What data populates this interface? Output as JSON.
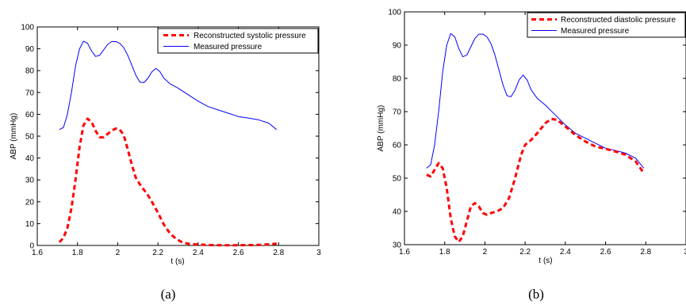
{
  "chart_data": [
    {
      "type": "line",
      "caption": "(a)",
      "xlabel": "t (s)",
      "ylabel": "ABP (mmHg)",
      "xlim": [
        1.6,
        3
      ],
      "ylim": [
        0,
        100
      ],
      "xticks": [
        "1.6",
        "1.8",
        "2",
        "2.2",
        "2.4",
        "2.6",
        "2.8",
        "3"
      ],
      "yticks": [
        "0",
        "10",
        "20",
        "30",
        "40",
        "50",
        "60",
        "70",
        "80",
        "90",
        "100"
      ],
      "legend_position": "top-right",
      "series": [
        {
          "name": "Reconstructed systolic pressure",
          "color": "#ff0000",
          "style": "dashed",
          "x": [
            1.71,
            1.73,
            1.75,
            1.77,
            1.79,
            1.81,
            1.83,
            1.85,
            1.87,
            1.89,
            1.91,
            1.93,
            1.95,
            1.97,
            1.99,
            2.01,
            2.03,
            2.05,
            2.07,
            2.09,
            2.11,
            2.13,
            2.15,
            2.17,
            2.2,
            2.23,
            2.26,
            2.29,
            2.32,
            2.35,
            2.4,
            2.45,
            2.5,
            2.6,
            2.7,
            2.79
          ],
          "y": [
            1.5,
            3.5,
            8,
            17,
            30,
            45,
            55,
            58,
            56.5,
            52.5,
            49.5,
            49.5,
            51,
            52.5,
            53.5,
            53,
            50.5,
            44,
            37,
            31,
            28,
            25.5,
            23,
            20,
            15,
            9.5,
            5.5,
            3,
            1.5,
            0.8,
            0.4,
            0.2,
            0.1,
            0.1,
            0.2,
            0.8
          ]
        },
        {
          "name": "Measured pressure",
          "color": "#0000ff",
          "style": "solid",
          "x": [
            1.71,
            1.73,
            1.75,
            1.77,
            1.79,
            1.81,
            1.83,
            1.85,
            1.87,
            1.89,
            1.91,
            1.93,
            1.95,
            1.97,
            1.99,
            2.01,
            2.03,
            2.05,
            2.07,
            2.09,
            2.11,
            2.13,
            2.15,
            2.17,
            2.19,
            2.21,
            2.23,
            2.26,
            2.3,
            2.35,
            2.4,
            2.45,
            2.5,
            2.55,
            2.6,
            2.65,
            2.7,
            2.75,
            2.79
          ],
          "y": [
            53,
            54,
            60,
            70,
            82,
            90,
            93.5,
            92.5,
            89,
            86.5,
            87,
            89.5,
            92,
            93.3,
            93.3,
            92.5,
            90.5,
            87,
            82.5,
            78,
            74.8,
            74.5,
            76.5,
            79.5,
            81,
            79.5,
            76.5,
            74,
            72,
            69,
            66,
            63.5,
            62,
            60.5,
            59,
            58.3,
            57.5,
            56,
            53
          ]
        }
      ]
    },
    {
      "type": "line",
      "caption": "(b)",
      "xlabel": "t (s)",
      "ylabel": "ABP (mmHg)",
      "xlim": [
        1.6,
        3
      ],
      "ylim": [
        30,
        100
      ],
      "xticks": [
        "1.6",
        "1.8",
        "2",
        "2.2",
        "2.4",
        "2.6",
        "2.8",
        "3"
      ],
      "yticks": [
        "30",
        "40",
        "50",
        "60",
        "70",
        "80",
        "90",
        "100"
      ],
      "legend_position": "top-right",
      "series": [
        {
          "name": "Reconstructed diastolic pressure",
          "color": "#ff0000",
          "style": "dashed",
          "x": [
            1.71,
            1.73,
            1.75,
            1.77,
            1.79,
            1.81,
            1.83,
            1.85,
            1.87,
            1.89,
            1.91,
            1.93,
            1.95,
            1.97,
            1.99,
            2.01,
            2.03,
            2.06,
            2.09,
            2.12,
            2.15,
            2.18,
            2.2,
            2.23,
            2.26,
            2.3,
            2.33,
            2.36,
            2.4,
            2.45,
            2.5,
            2.55,
            2.6,
            2.65,
            2.7,
            2.75,
            2.79
          ],
          "y": [
            51,
            50.5,
            52.5,
            54.5,
            53,
            47,
            38,
            32.5,
            30.8,
            32.5,
            37,
            41.5,
            42.5,
            41.5,
            39.5,
            39,
            39.5,
            40,
            41,
            44,
            50,
            57,
            60,
            61.5,
            63.5,
            66.5,
            67.8,
            67.5,
            65.5,
            63,
            61,
            59.5,
            58.8,
            58,
            57,
            55,
            51.5
          ]
        },
        {
          "name": "Measured pressure",
          "color": "#0000ff",
          "style": "solid",
          "x": [
            1.71,
            1.73,
            1.75,
            1.77,
            1.79,
            1.81,
            1.83,
            1.85,
            1.87,
            1.89,
            1.91,
            1.93,
            1.95,
            1.97,
            1.99,
            2.01,
            2.03,
            2.05,
            2.07,
            2.09,
            2.11,
            2.13,
            2.15,
            2.17,
            2.19,
            2.21,
            2.23,
            2.26,
            2.3,
            2.35,
            2.4,
            2.45,
            2.5,
            2.55,
            2.6,
            2.65,
            2.7,
            2.75,
            2.79
          ],
          "y": [
            53,
            54,
            60,
            70,
            82,
            90,
            93.5,
            92.5,
            89,
            86.5,
            87,
            89.5,
            92,
            93.3,
            93.3,
            92.5,
            90.5,
            87,
            82.5,
            78,
            74.8,
            74.5,
            76.5,
            79.5,
            81,
            79.5,
            76.5,
            74,
            72,
            69,
            66,
            63.5,
            62,
            60.5,
            59,
            58.3,
            57.5,
            56,
            53
          ]
        }
      ]
    }
  ]
}
